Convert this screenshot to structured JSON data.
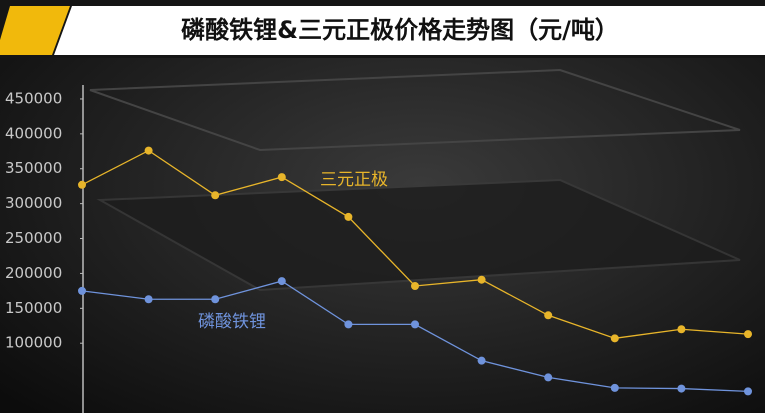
{
  "chart_data": {
    "type": "line",
    "title": "磷酸铁锂&三元正极价格走势图（元/吨）",
    "categories": [
      null,
      null,
      null,
      null,
      null,
      null,
      null,
      null,
      null,
      null,
      null
    ],
    "series": [
      {
        "name": "三元正极",
        "color": "#e8b52a",
        "values": [
          327000,
          376000,
          312000,
          338000,
          281000,
          182000,
          191000,
          140000,
          107000,
          120000,
          113000
        ]
      },
      {
        "name": "磷酸铁锂",
        "color": "#6f93dc",
        "values": [
          175000,
          163000,
          163000,
          189000,
          127000,
          127000,
          75000,
          51000,
          36000,
          35000,
          31000
        ]
      }
    ],
    "ylim": [
      0,
      470000
    ],
    "yticks": [
      100000,
      150000,
      200000,
      250000,
      300000,
      350000,
      400000,
      450000
    ],
    "grid": false
  }
}
